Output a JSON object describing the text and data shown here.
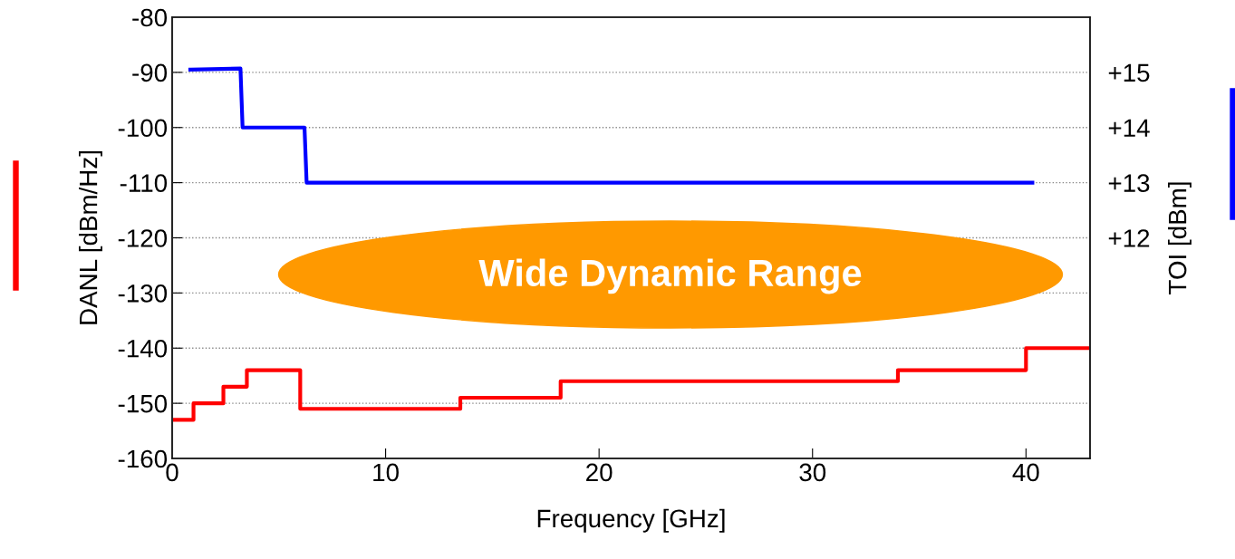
{
  "chart_data": {
    "type": "line",
    "xlabel": "Frequency [GHz]",
    "ylabel": "DANL [dBm/Hz]",
    "y2label": "TOI [dBm]",
    "annotations": [
      "Wide Dynamic Range"
    ],
    "series": [
      {
        "color": "#ff0000",
        "x": [
          0,
          1.0,
          1.0,
          2.4,
          2.4,
          3.5,
          3.5,
          6.0,
          6.0,
          13.5,
          13.5,
          18.2,
          18.2,
          34.0,
          34.0,
          40.0,
          40.0,
          43.0
        ],
        "values": [
          -153,
          -153,
          -150,
          -150,
          -147,
          -147,
          -144,
          -144,
          -151,
          -151,
          -149,
          -149,
          -146,
          -146,
          -144,
          -144,
          -140,
          -140
        ]
      },
      {
        "color": "#0000ff",
        "axis": "y2",
        "x": [
          0.85,
          3.2,
          3.3,
          6.2,
          6.3,
          40.3
        ],
        "values": [
          15.05,
          15.07,
          14.0,
          14.0,
          13.0,
          13.0
        ]
      }
    ],
    "xlim": [
      0,
      43
    ],
    "xticks": [
      0,
      10,
      20,
      30,
      40
    ],
    "ylim": [
      -160,
      -80
    ],
    "yticks": [
      -160,
      -150,
      -140,
      -130,
      -120,
      -110,
      -100,
      -90,
      -80
    ],
    "y2lim": [
      8,
      16
    ],
    "y2ticks": [
      {
        "value": 12,
        "label": "+12"
      },
      {
        "value": 13,
        "label": "+13"
      },
      {
        "value": 14,
        "label": "+14"
      },
      {
        "value": 15,
        "label": "+15"
      }
    ],
    "grid": "y",
    "line_style": "solid",
    "marker": "none",
    "legend": false
  }
}
